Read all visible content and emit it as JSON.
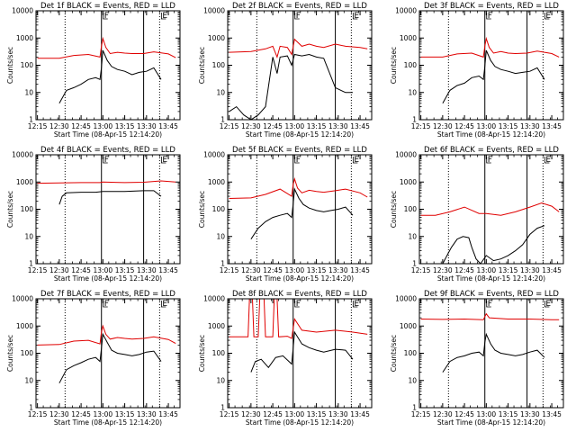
{
  "figure": {
    "xlabel": "Start Time (08-Apr-15 12:14:20)",
    "ylabel": "Counts/sec",
    "x_tick_labels": [
      "12:15",
      "12:30",
      "12:45",
      "13:00",
      "13:15",
      "13:30",
      "13:45"
    ],
    "y_tick_labels": [
      "1",
      "10",
      "100",
      "1000",
      "10000"
    ]
  },
  "chart_data": [
    {
      "type": "line",
      "title": "Det 1f BLACK = Events, RED = LLD",
      "xlim_minutes": [
        0,
        99
      ],
      "ylim": [
        1,
        10000
      ],
      "yscale": "log",
      "xticks": [
        "12:15",
        "12:30",
        "12:45",
        "13:00",
        "13:15",
        "13:30",
        "13:45"
      ],
      "solid_vlines": [
        "12:59",
        "13:28"
      ],
      "dotted_vlines": [
        "12:34",
        "13:39"
      ],
      "markers": [
        {
          "label": "F",
          "at": "12:59"
        },
        {
          "label": "E",
          "at": "13:39"
        }
      ],
      "series": [
        {
          "name": "RED = LLD",
          "color": "#e00000",
          "x": [
            "12:15",
            "12:30",
            "12:40",
            "12:50",
            "12:58",
            "12:59",
            "13:00",
            "13:02",
            "13:05",
            "13:10",
            "13:15",
            "13:20",
            "13:28",
            "13:35",
            "13:45",
            "13:50"
          ],
          "y": [
            180,
            180,
            230,
            250,
            200,
            500,
            950,
            450,
            270,
            300,
            280,
            270,
            270,
            310,
            260,
            190
          ]
        },
        {
          "name": "BLACK = Events",
          "color": "#000000",
          "x": [
            "12:30",
            "12:35",
            "12:40",
            "12:45",
            "12:50",
            "12:55",
            "12:58",
            "12:59",
            "13:00",
            "13:03",
            "13:06",
            "13:10",
            "13:15",
            "13:20",
            "13:25",
            "13:30",
            "13:35",
            "13:40"
          ],
          "y": [
            4,
            12,
            15,
            20,
            30,
            35,
            30,
            80,
            350,
            150,
            90,
            70,
            60,
            45,
            55,
            60,
            80,
            30
          ]
        }
      ]
    },
    {
      "type": "line",
      "title": "Det 2f BLACK = Events, RED = LLD",
      "xlim_minutes": [
        0,
        99
      ],
      "ylim": [
        1,
        10000
      ],
      "yscale": "log",
      "xticks": [
        "12:15",
        "12:30",
        "12:45",
        "13:00",
        "13:15",
        "13:30",
        "13:45"
      ],
      "solid_vlines": [
        "12:59",
        "13:28"
      ],
      "dotted_vlines": [
        "12:34",
        "13:39"
      ],
      "markers": [
        {
          "label": "F",
          "at": "12:59"
        },
        {
          "label": "E",
          "at": "13:39"
        }
      ],
      "series": [
        {
          "name": "RED = LLD",
          "color": "#e00000",
          "x": [
            "12:15",
            "12:30",
            "12:40",
            "12:45",
            "12:48",
            "12:50",
            "12:55",
            "12:58",
            "13:00",
            "13:05",
            "13:10",
            "13:15",
            "13:20",
            "13:28",
            "13:35",
            "13:45",
            "13:50"
          ],
          "y": [
            300,
            320,
            400,
            500,
            200,
            500,
            450,
            250,
            900,
            500,
            600,
            500,
            450,
            600,
            500,
            450,
            400
          ]
        },
        {
          "name": "BLACK = Events",
          "color": "#000000",
          "x": [
            "12:15",
            "12:20",
            "12:25",
            "12:30",
            "12:35",
            "12:40",
            "12:45",
            "12:48",
            "12:50",
            "12:55",
            "12:58",
            "13:00",
            "13:05",
            "13:10",
            "13:15",
            "13:20",
            "13:28",
            "13:35",
            "13:40"
          ],
          "y": [
            2,
            3,
            1.5,
            1,
            1.5,
            3,
            200,
            50,
            200,
            220,
            100,
            250,
            220,
            250,
            200,
            180,
            15,
            10,
            10
          ]
        }
      ]
    },
    {
      "type": "line",
      "title": "Det 3f BLACK = Events, RED = LLD",
      "xlim_minutes": [
        0,
        99
      ],
      "ylim": [
        1,
        10000
      ],
      "yscale": "log",
      "xticks": [
        "12:15",
        "12:30",
        "12:45",
        "13:00",
        "13:15",
        "13:30",
        "13:45"
      ],
      "solid_vlines": [
        "12:59",
        "13:28"
      ],
      "dotted_vlines": [
        "12:34",
        "13:39"
      ],
      "markers": [
        {
          "label": "F",
          "at": "12:59"
        },
        {
          "label": "E",
          "at": "13:39"
        }
      ],
      "series": [
        {
          "name": "RED = LLD",
          "color": "#e00000",
          "x": [
            "12:15",
            "12:30",
            "12:40",
            "12:50",
            "12:58",
            "12:59",
            "13:00",
            "13:02",
            "13:05",
            "13:10",
            "13:15",
            "13:20",
            "13:28",
            "13:35",
            "13:45",
            "13:50"
          ],
          "y": [
            200,
            200,
            260,
            280,
            200,
            500,
            950,
            450,
            280,
            320,
            280,
            270,
            280,
            330,
            270,
            200
          ]
        },
        {
          "name": "BLACK = Events",
          "color": "#000000",
          "x": [
            "12:30",
            "12:35",
            "12:40",
            "12:45",
            "12:50",
            "12:55",
            "12:58",
            "12:59",
            "13:00",
            "13:03",
            "13:06",
            "13:10",
            "13:15",
            "13:20",
            "13:25",
            "13:30",
            "13:35",
            "13:40"
          ],
          "y": [
            4,
            12,
            18,
            22,
            35,
            40,
            30,
            90,
            350,
            150,
            90,
            70,
            60,
            50,
            55,
            60,
            80,
            30
          ]
        }
      ]
    },
    {
      "type": "line",
      "title": "Det 4f BLACK = Events, RED = LLD",
      "xlim_minutes": [
        0,
        99
      ],
      "ylim": [
        1,
        10000
      ],
      "yscale": "log",
      "xticks": [
        "12:15",
        "12:30",
        "12:45",
        "13:00",
        "13:15",
        "13:30",
        "13:45"
      ],
      "solid_vlines": [
        "12:59",
        "13:28"
      ],
      "dotted_vlines": [
        "12:34",
        "13:39"
      ],
      "markers": [
        {
          "label": "F",
          "at": "12:59"
        },
        {
          "label": "E",
          "at": "13:39"
        }
      ],
      "series": [
        {
          "name": "RED = LLD",
          "color": "#e00000",
          "x": [
            "12:15",
            "12:30",
            "12:45",
            "12:58",
            "13:00",
            "13:15",
            "13:28",
            "13:40",
            "13:50"
          ],
          "y": [
            900,
            920,
            950,
            950,
            1000,
            950,
            980,
            1100,
            1000
          ]
        },
        {
          "name": "BLACK = Events",
          "color": "#000000",
          "x": [
            "12:30",
            "12:32",
            "12:35",
            "12:45",
            "12:55",
            "13:00",
            "13:15",
            "13:28",
            "13:35",
            "13:40"
          ],
          "y": [
            150,
            300,
            400,
            420,
            420,
            450,
            450,
            480,
            480,
            300
          ]
        }
      ]
    },
    {
      "type": "line",
      "title": "Det 5f BLACK = Events, RED = LLD",
      "xlim_minutes": [
        0,
        99
      ],
      "ylim": [
        1,
        10000
      ],
      "yscale": "log",
      "xticks": [
        "12:15",
        "12:30",
        "12:45",
        "13:00",
        "13:15",
        "13:30",
        "13:45"
      ],
      "solid_vlines": [
        "12:59",
        "13:28"
      ],
      "dotted_vlines": [
        "12:34",
        "13:39"
      ],
      "markers": [
        {
          "label": "F",
          "at": "12:59"
        },
        {
          "label": "E",
          "at": "13:39"
        }
      ],
      "series": [
        {
          "name": "RED = LLD",
          "color": "#e00000",
          "x": [
            "12:15",
            "12:30",
            "12:40",
            "12:50",
            "12:58",
            "12:59",
            "13:00",
            "13:02",
            "13:05",
            "13:10",
            "13:15",
            "13:20",
            "13:28",
            "13:35",
            "13:45",
            "13:50"
          ],
          "y": [
            250,
            260,
            350,
            550,
            300,
            800,
            1300,
            600,
            400,
            500,
            450,
            420,
            480,
            550,
            400,
            280
          ]
        },
        {
          "name": "BLACK = Events",
          "color": "#000000",
          "x": [
            "12:30",
            "12:35",
            "12:40",
            "12:45",
            "12:50",
            "12:55",
            "12:58",
            "12:59",
            "13:00",
            "13:03",
            "13:06",
            "13:10",
            "13:15",
            "13:20",
            "13:25",
            "13:30",
            "13:35",
            "13:40"
          ],
          "y": [
            8,
            20,
            35,
            50,
            60,
            70,
            50,
            150,
            550,
            250,
            150,
            110,
            90,
            80,
            90,
            100,
            120,
            60
          ]
        }
      ]
    },
    {
      "type": "line",
      "title": "Det 6f BLACK = Events, RED = LLD",
      "xlim_minutes": [
        0,
        99
      ],
      "ylim": [
        1,
        10000
      ],
      "yscale": "log",
      "xticks": [
        "12:15",
        "12:30",
        "12:45",
        "13:00",
        "13:15",
        "13:30",
        "13:45"
      ],
      "solid_vlines": [
        "12:59",
        "13:28"
      ],
      "dotted_vlines": [
        "12:34",
        "13:39"
      ],
      "markers": [
        {
          "label": "F",
          "at": "12:59"
        },
        {
          "label": "E",
          "at": "13:39"
        }
      ],
      "series": [
        {
          "name": "RED = LLD",
          "color": "#e00000",
          "x": [
            "12:15",
            "12:25",
            "12:35",
            "12:45",
            "12:55",
            "13:00",
            "13:10",
            "13:20",
            "13:30",
            "13:38",
            "13:45",
            "13:50"
          ],
          "y": [
            60,
            60,
            80,
            120,
            70,
            70,
            60,
            80,
            120,
            170,
            130,
            80
          ]
        },
        {
          "name": "BLACK = Events",
          "color": "#000000",
          "x": [
            "12:30",
            "12:33",
            "12:36",
            "12:40",
            "12:44",
            "12:48",
            "12:50",
            "12:53",
            "12:56",
            "13:00",
            "13:05",
            "13:10",
            "13:15",
            "13:20",
            "13:25",
            "13:30",
            "13:35",
            "13:40"
          ],
          "y": [
            1,
            2,
            4,
            8,
            10,
            9,
            4,
            1.5,
            1,
            2,
            1.3,
            1.5,
            2,
            3,
            5,
            12,
            20,
            25
          ]
        }
      ]
    },
    {
      "type": "line",
      "title": "Det 7f BLACK = Events, RED = LLD",
      "xlim_minutes": [
        0,
        99
      ],
      "ylim": [
        1,
        10000
      ],
      "yscale": "log",
      "xticks": [
        "12:15",
        "12:30",
        "12:45",
        "13:00",
        "13:15",
        "13:30",
        "13:45"
      ],
      "solid_vlines": [
        "12:59",
        "13:28"
      ],
      "dotted_vlines": [
        "12:34",
        "13:39"
      ],
      "markers": [
        {
          "label": "F",
          "at": "12:59"
        },
        {
          "label": "E",
          "at": "13:39"
        }
      ],
      "series": [
        {
          "name": "RED = LLD",
          "color": "#e00000",
          "x": [
            "12:15",
            "12:30",
            "12:40",
            "12:50",
            "12:58",
            "12:59",
            "13:00",
            "13:02",
            "13:05",
            "13:10",
            "13:15",
            "13:20",
            "13:28",
            "13:35",
            "13:45",
            "13:50"
          ],
          "y": [
            200,
            210,
            280,
            300,
            220,
            600,
            1000,
            500,
            330,
            380,
            350,
            330,
            350,
            400,
            320,
            230
          ]
        },
        {
          "name": "BLACK = Events",
          "color": "#000000",
          "x": [
            "12:30",
            "12:35",
            "12:40",
            "12:45",
            "12:50",
            "12:55",
            "12:58",
            "12:59",
            "13:00",
            "13:03",
            "13:06",
            "13:10",
            "13:15",
            "13:20",
            "13:25",
            "13:30",
            "13:35",
            "13:40"
          ],
          "y": [
            8,
            25,
            35,
            45,
            60,
            70,
            50,
            150,
            500,
            250,
            130,
            100,
            90,
            80,
            90,
            110,
            120,
            50
          ]
        }
      ]
    },
    {
      "type": "line",
      "title": "Det 8f BLACK = Events, RED = LLD",
      "xlim_minutes": [
        0,
        99
      ],
      "ylim": [
        1,
        10000
      ],
      "yscale": "log",
      "xticks": [
        "12:15",
        "12:30",
        "12:45",
        "13:00",
        "13:15",
        "13:30",
        "13:45"
      ],
      "solid_vlines": [
        "12:59",
        "13:28"
      ],
      "dotted_vlines": [
        "12:34",
        "13:39"
      ],
      "markers": [
        {
          "label": "F",
          "at": "12:59"
        },
        {
          "label": "E",
          "at": "13:39"
        }
      ],
      "series": [
        {
          "name": "RED = LLD",
          "color": "#e00000",
          "x": [
            "12:15",
            "12:28",
            "12:29",
            "12:31",
            "12:32",
            "12:35",
            "12:36",
            "12:39",
            "12:40",
            "12:45",
            "12:46",
            "12:48",
            "12:49",
            "12:55",
            "12:58",
            "12:59",
            "13:00",
            "13:05",
            "13:15",
            "13:28",
            "13:40",
            "13:50"
          ],
          "y": [
            400,
            400,
            10000,
            10000,
            400,
            400,
            10000,
            10000,
            400,
            400,
            10000,
            10000,
            400,
            420,
            350,
            800,
            1800,
            700,
            600,
            700,
            600,
            500
          ]
        },
        {
          "name": "BLACK = Events",
          "color": "#000000",
          "x": [
            "12:30",
            "12:33",
            "12:37",
            "12:42",
            "12:47",
            "12:52",
            "12:58",
            "12:59",
            "13:00",
            "13:05",
            "13:10",
            "13:15",
            "13:20",
            "13:28",
            "13:35",
            "13:40"
          ],
          "y": [
            20,
            50,
            60,
            30,
            70,
            80,
            40,
            150,
            600,
            220,
            160,
            130,
            110,
            140,
            130,
            60
          ]
        }
      ]
    },
    {
      "type": "line",
      "title": "Det 9f BLACK = Events, RED = LLD",
      "xlim_minutes": [
        0,
        99
      ],
      "ylim": [
        1,
        10000
      ],
      "yscale": "log",
      "xticks": [
        "12:15",
        "12:30",
        "12:45",
        "13:00",
        "13:15",
        "13:30",
        "13:45"
      ],
      "solid_vlines": [
        "12:59",
        "13:28"
      ],
      "dotted_vlines": [
        "12:34",
        "13:39"
      ],
      "markers": [
        {
          "label": "F",
          "at": "12:59"
        },
        {
          "label": "E",
          "at": "13:39"
        }
      ],
      "series": [
        {
          "name": "RED = LLD",
          "color": "#e00000",
          "x": [
            "12:15",
            "12:30",
            "12:45",
            "12:58",
            "12:59",
            "13:00",
            "13:02",
            "13:15",
            "13:30",
            "13:45",
            "13:50"
          ],
          "y": [
            1800,
            1750,
            1800,
            1700,
            2200,
            2800,
            2000,
            1800,
            1800,
            1700,
            1700
          ]
        },
        {
          "name": "BLACK = Events",
          "color": "#000000",
          "x": [
            "12:30",
            "12:35",
            "12:40",
            "12:45",
            "12:50",
            "12:55",
            "12:58",
            "12:59",
            "13:00",
            "13:03",
            "13:06",
            "13:10",
            "13:15",
            "13:20",
            "13:25",
            "13:30",
            "13:35",
            "13:40"
          ],
          "y": [
            20,
            50,
            70,
            80,
            100,
            110,
            80,
            250,
            500,
            220,
            130,
            100,
            90,
            80,
            90,
            110,
            130,
            70
          ]
        }
      ]
    }
  ]
}
